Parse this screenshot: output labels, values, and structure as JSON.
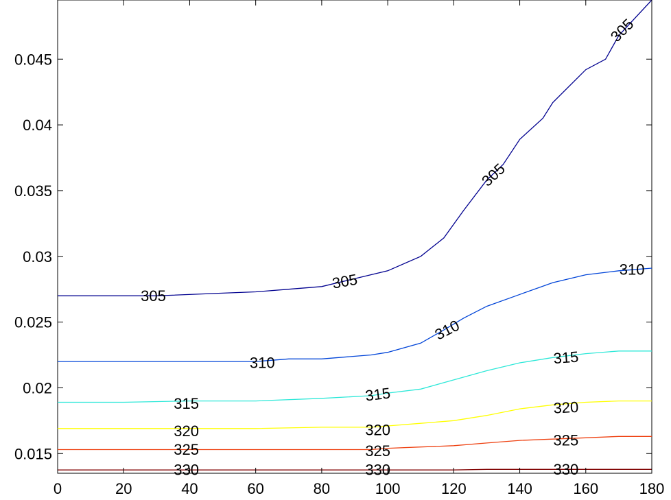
{
  "chart_data": {
    "type": "contour",
    "title": "",
    "xlabel": "",
    "ylabel": "",
    "xlim": [
      0,
      180
    ],
    "ylim": [
      0.0135,
      0.0495
    ],
    "xticks": [
      0,
      20,
      40,
      60,
      80,
      100,
      120,
      140,
      160,
      180
    ],
    "yticks": [
      0.015,
      0.02,
      0.025,
      0.03,
      0.035,
      0.04,
      0.045
    ],
    "xtick_labels": [
      "0",
      "20",
      "40",
      "60",
      "80",
      "100",
      "120",
      "140",
      "160",
      "180"
    ],
    "ytick_labels": [
      "0.015",
      "0.02",
      "0.025",
      "0.03",
      "0.035",
      "0.04",
      "0.045"
    ],
    "grid": false,
    "legend": "none",
    "series": [
      {
        "level": "305",
        "color": "#00008f",
        "x": [
          0,
          20,
          30,
          50,
          60,
          70,
          80,
          90,
          100,
          110,
          117,
          123,
          130,
          135,
          140,
          147,
          150,
          160,
          166,
          170,
          180
        ],
        "y": [
          0.027,
          0.027,
          0.027,
          0.0272,
          0.0273,
          0.0275,
          0.0277,
          0.0283,
          0.0289,
          0.03,
          0.0314,
          0.0335,
          0.0358,
          0.037,
          0.0389,
          0.0405,
          0.0417,
          0.0442,
          0.045,
          0.0468,
          0.0495
        ],
        "labels": [
          {
            "text": "305",
            "x": 29,
            "y": 0.027,
            "angle": 0
          },
          {
            "text": "305",
            "x": 87,
            "y": 0.0281,
            "angle": -10
          },
          {
            "text": "305",
            "x": 132,
            "y": 0.0362,
            "angle": -43
          },
          {
            "text": "305",
            "x": 171,
            "y": 0.0472,
            "angle": -45
          }
        ]
      },
      {
        "level": "310",
        "color": "#0044d8",
        "x": [
          0,
          20,
          40,
          50,
          60,
          70,
          80,
          95,
          100,
          110,
          117,
          123,
          130,
          140,
          150,
          160,
          170,
          180
        ],
        "y": [
          0.022,
          0.022,
          0.022,
          0.022,
          0.022,
          0.0222,
          0.0222,
          0.0225,
          0.0227,
          0.0234,
          0.0244,
          0.0253,
          0.0262,
          0.0271,
          0.028,
          0.0286,
          0.0289,
          0.0291
        ],
        "labels": [
          {
            "text": "310",
            "x": 62,
            "y": 0.0219,
            "angle": 0
          },
          {
            "text": "310",
            "x": 118,
            "y": 0.0244,
            "angle": -27
          },
          {
            "text": "310",
            "x": 174,
            "y": 0.029,
            "angle": 0
          }
        ]
      },
      {
        "level": "315",
        "color": "#2de8d8",
        "x": [
          0,
          20,
          40,
          60,
          80,
          95,
          100,
          110,
          120,
          130,
          140,
          150,
          160,
          170,
          180
        ],
        "y": [
          0.0189,
          0.0189,
          0.019,
          0.019,
          0.0192,
          0.0194,
          0.0196,
          0.0199,
          0.0206,
          0.0213,
          0.0219,
          0.0223,
          0.0226,
          0.0228,
          0.0228
        ],
        "labels": [
          {
            "text": "315",
            "x": 39,
            "y": 0.0188,
            "angle": 0
          },
          {
            "text": "315",
            "x": 97,
            "y": 0.0195,
            "angle": -7
          },
          {
            "text": "315",
            "x": 154,
            "y": 0.0223,
            "angle": -4
          }
        ]
      },
      {
        "level": "320",
        "color": "#ffff00",
        "x": [
          0,
          20,
          40,
          60,
          80,
          95,
          100,
          110,
          120,
          130,
          140,
          150,
          160,
          170,
          180
        ],
        "y": [
          0.0169,
          0.0169,
          0.0169,
          0.0169,
          0.017,
          0.017,
          0.0171,
          0.0173,
          0.0175,
          0.0179,
          0.0184,
          0.0187,
          0.0189,
          0.019,
          0.019
        ],
        "labels": [
          {
            "text": "320",
            "x": 39,
            "y": 0.0167,
            "angle": 0
          },
          {
            "text": "320",
            "x": 97,
            "y": 0.0168,
            "angle": 0
          },
          {
            "text": "320",
            "x": 154,
            "y": 0.0185,
            "angle": -3
          }
        ]
      },
      {
        "level": "325",
        "color": "#ee4010",
        "x": [
          0,
          20,
          40,
          60,
          80,
          95,
          100,
          110,
          120,
          130,
          140,
          150,
          160,
          170,
          180
        ],
        "y": [
          0.0153,
          0.0153,
          0.0153,
          0.0153,
          0.0153,
          0.0153,
          0.0154,
          0.0155,
          0.0156,
          0.0158,
          0.016,
          0.0161,
          0.0162,
          0.0163,
          0.0163
        ],
        "labels": [
          {
            "text": "325",
            "x": 39,
            "y": 0.0153,
            "angle": 0
          },
          {
            "text": "325",
            "x": 97,
            "y": 0.0152,
            "angle": 0
          },
          {
            "text": "325",
            "x": 154,
            "y": 0.016,
            "angle": 0
          }
        ]
      },
      {
        "level": "330",
        "color": "#800000",
        "x": [
          0,
          20,
          40,
          60,
          80,
          100,
          120,
          130,
          140,
          160,
          180
        ],
        "y": [
          0.01375,
          0.01375,
          0.01375,
          0.01375,
          0.01375,
          0.01375,
          0.01375,
          0.0138,
          0.0138,
          0.0138,
          0.0138
        ],
        "labels": [
          {
            "text": "330",
            "x": 39,
            "y": 0.01375,
            "angle": 0
          },
          {
            "text": "330",
            "x": 97,
            "y": 0.01375,
            "angle": 0
          },
          {
            "text": "330",
            "x": 154,
            "y": 0.0138,
            "angle": 0
          }
        ]
      }
    ]
  }
}
